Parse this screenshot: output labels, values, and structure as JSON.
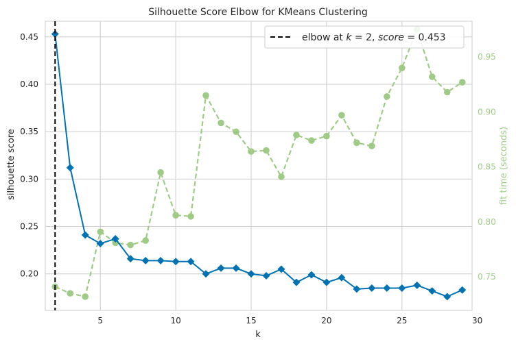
{
  "chart_data": {
    "type": "line",
    "title": "Silhouette Score Elbow for KMeans Clustering",
    "xlabel": "k",
    "ylabel": "silhouette score",
    "y2label": "fit time (seconds)",
    "xlim": [
      1.35,
      29.65
    ],
    "ylim": [
      0.1615,
      0.4665
    ],
    "y2lim": [
      0.7195,
      0.9825
    ],
    "x_ticks": [
      5,
      10,
      15,
      20,
      25,
      30
    ],
    "y_ticks": [
      0.2,
      0.25,
      0.3,
      0.35,
      0.4,
      0.45
    ],
    "y_tick_labels": [
      "0.20",
      "0.25",
      "0.30",
      "0.35",
      "0.40",
      "0.45"
    ],
    "y2_ticks": [
      0.75,
      0.8,
      0.85,
      0.9,
      0.95
    ],
    "y2_tick_labels": [
      "0.75",
      "0.80",
      "0.85",
      "0.90",
      "0.95"
    ],
    "grid": true,
    "legend_position": "top-right",
    "x": [
      2,
      3,
      4,
      5,
      6,
      7,
      8,
      9,
      10,
      11,
      12,
      13,
      14,
      15,
      16,
      17,
      18,
      19,
      20,
      21,
      22,
      23,
      24,
      25,
      26,
      27,
      28,
      29
    ],
    "series": [
      {
        "axis": "left",
        "color": "#0072b2",
        "marker": "diamond",
        "values": [
          0.453,
          0.312,
          0.241,
          0.232,
          0.237,
          0.216,
          0.214,
          0.214,
          0.213,
          0.213,
          0.2,
          0.206,
          0.206,
          0.2,
          0.198,
          0.205,
          0.191,
          0.199,
          0.191,
          0.196,
          0.184,
          0.185,
          0.185,
          0.185,
          0.188,
          0.182,
          0.176,
          0.183
        ]
      },
      {
        "axis": "right",
        "color": "#9fcb87",
        "marker": "circle",
        "dashed": true,
        "values": [
          0.741,
          0.735,
          0.732,
          0.791,
          0.781,
          0.779,
          0.783,
          0.845,
          0.806,
          0.805,
          0.915,
          0.89,
          0.882,
          0.864,
          0.865,
          0.841,
          0.879,
          0.874,
          0.878,
          0.897,
          0.872,
          0.869,
          0.914,
          0.94,
          0.975,
          0.932,
          0.918,
          0.927
        ]
      }
    ],
    "elbow": {
      "k": 2,
      "label": "elbow at $k=2$, $score=0.453$",
      "label_text": "elbow at ",
      "k_symbol": "k",
      "k_eq": " = 2, ",
      "score_symbol": "score",
      "score_eq": " = 0.453"
    },
    "colors": {
      "grid": "#cccccc",
      "spine": "#cccccc",
      "left_series": "#0072b2",
      "right_series": "#9fcb87",
      "elbow": "#000000"
    }
  }
}
